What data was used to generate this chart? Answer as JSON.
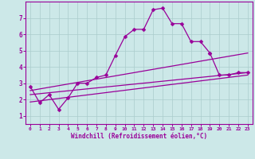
{
  "xlabel": "Windchill (Refroidissement éolien,°C)",
  "xlim": [
    -0.5,
    23.5
  ],
  "ylim": [
    0.5,
    8.0
  ],
  "yticks": [
    1,
    2,
    3,
    4,
    5,
    6,
    7
  ],
  "xticks": [
    0,
    1,
    2,
    3,
    4,
    5,
    6,
    7,
    8,
    9,
    10,
    11,
    12,
    13,
    14,
    15,
    16,
    17,
    18,
    19,
    20,
    21,
    22,
    23
  ],
  "bg_color": "#cce8e8",
  "grid_color": "#aacccc",
  "line_color": "#990099",
  "lines": [
    {
      "x": [
        0,
        1,
        2,
        3,
        4,
        5,
        6,
        7,
        8,
        9,
        10,
        11,
        12,
        13,
        14,
        15,
        16,
        17,
        18,
        19
      ],
      "y": [
        2.8,
        1.8,
        2.3,
        1.4,
        2.1,
        3.0,
        3.0,
        3.35,
        3.5,
        4.7,
        5.85,
        6.3,
        6.3,
        7.5,
        7.6,
        6.65,
        6.65,
        5.55,
        5.55,
        4.85
      ],
      "marker": "D",
      "markersize": 2.5,
      "linewidth": 0.9,
      "has_marker": true
    },
    {
      "x": [
        19,
        20,
        21,
        22,
        23
      ],
      "y": [
        4.85,
        3.5,
        3.5,
        3.65,
        3.65
      ],
      "marker": "D",
      "markersize": 2.5,
      "linewidth": 0.9,
      "has_marker": true
    },
    {
      "x": [
        0,
        23
      ],
      "y": [
        2.55,
        4.85
      ],
      "marker": null,
      "markersize": 0,
      "linewidth": 0.9,
      "has_marker": false
    },
    {
      "x": [
        0,
        23
      ],
      "y": [
        2.3,
        3.65
      ],
      "marker": null,
      "markersize": 0,
      "linewidth": 0.9,
      "has_marker": false
    },
    {
      "x": [
        0,
        23
      ],
      "y": [
        1.85,
        3.5
      ],
      "marker": null,
      "markersize": 0,
      "linewidth": 0.9,
      "has_marker": false
    }
  ]
}
